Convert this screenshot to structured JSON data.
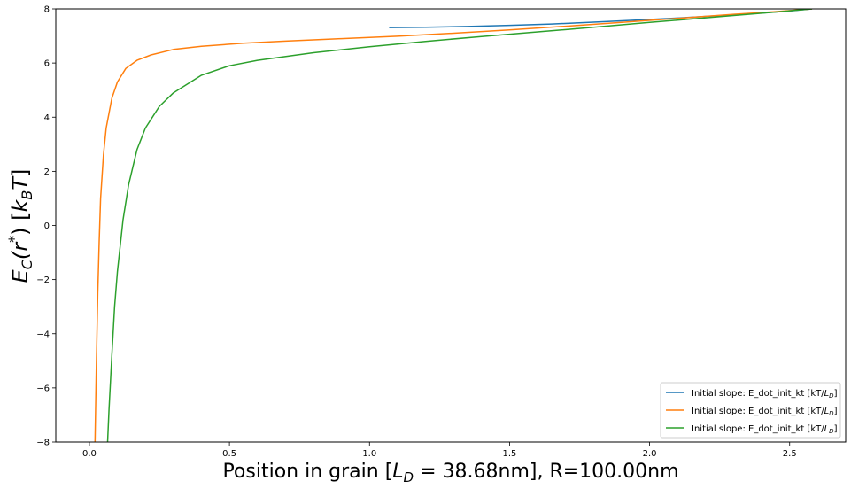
{
  "chart_data": {
    "type": "line",
    "xlabel_main": "Position in grain [",
    "xlabel_sym": "L",
    "xlabel_sub": "D",
    "xlabel_rest": " = 38.68nm], R=100.00nm",
    "ylabel_E": "E",
    "ylabel_sub": "C",
    "ylabel_arg": "(r",
    "ylabel_star": "*",
    "ylabel_close": ") [",
    "ylabel_k": "k",
    "ylabel_ksub": "B",
    "ylabel_T": "T",
    "ylabel_end": "]",
    "xlim": [
      -0.12,
      2.7
    ],
    "ylim": [
      -8,
      8
    ],
    "xticks": [
      0.0,
      0.5,
      1.0,
      1.5,
      2.0,
      2.5
    ],
    "xtick_labels": [
      "0.0",
      "0.5",
      "1.0",
      "1.5",
      "2.0",
      "2.5"
    ],
    "yticks": [
      -8,
      -6,
      -4,
      -2,
      0,
      2,
      4,
      6,
      8
    ],
    "ytick_labels": [
      "−8",
      "−6",
      "−4",
      "−2",
      "0",
      "2",
      "4",
      "6",
      "8"
    ],
    "grid": false,
    "legend_placement": "lower-right",
    "series": [
      {
        "name": "Initial slope: E_dot_init_kt [kT/",
        "name_sym": "L",
        "name_sub": "D",
        "name_end": "]",
        "color": "#1f77b4",
        "x": [
          1.07,
          1.2,
          1.35,
          1.5,
          1.65,
          1.8,
          1.95,
          2.1,
          2.25,
          2.4,
          2.5,
          2.58
        ],
        "y": [
          7.31,
          7.32,
          7.35,
          7.39,
          7.44,
          7.51,
          7.58,
          7.66,
          7.75,
          7.85,
          7.92,
          8.0
        ]
      },
      {
        "name": "Initial slope: E_dot_init_kt [kT/",
        "name_sym": "L",
        "name_sub": "D",
        "name_end": "]",
        "color": "#ff7f0e",
        "x": [
          0.02,
          0.025,
          0.03,
          0.035,
          0.04,
          0.05,
          0.06,
          0.08,
          0.1,
          0.13,
          0.17,
          0.22,
          0.3,
          0.4,
          0.55,
          0.7,
          0.9,
          1.1,
          1.3,
          1.5,
          1.7,
          1.9,
          2.1,
          2.3,
          2.45,
          2.58
        ],
        "y": [
          -8.0,
          -5.0,
          -2.5,
          -0.6,
          1.0,
          2.6,
          3.6,
          4.7,
          5.3,
          5.8,
          6.1,
          6.3,
          6.5,
          6.62,
          6.73,
          6.81,
          6.9,
          6.99,
          7.1,
          7.22,
          7.36,
          7.5,
          7.65,
          7.8,
          7.9,
          8.0
        ]
      },
      {
        "name": "Initial slope: E_dot_init_kt [kT/",
        "name_sym": "L",
        "name_sub": "D",
        "name_end": "]",
        "color": "#2ca02c",
        "x": [
          0.065,
          0.07,
          0.075,
          0.08,
          0.09,
          0.1,
          0.12,
          0.14,
          0.17,
          0.2,
          0.25,
          0.3,
          0.4,
          0.5,
          0.6,
          0.8,
          1.0,
          1.2,
          1.4,
          1.6,
          1.8,
          2.0,
          2.2,
          2.4,
          2.58
        ],
        "y": [
          -8.0,
          -6.8,
          -5.8,
          -4.8,
          -3.0,
          -1.7,
          0.2,
          1.5,
          2.8,
          3.6,
          4.4,
          4.9,
          5.55,
          5.9,
          6.1,
          6.38,
          6.6,
          6.8,
          6.98,
          7.15,
          7.32,
          7.5,
          7.67,
          7.84,
          8.0
        ]
      }
    ]
  }
}
